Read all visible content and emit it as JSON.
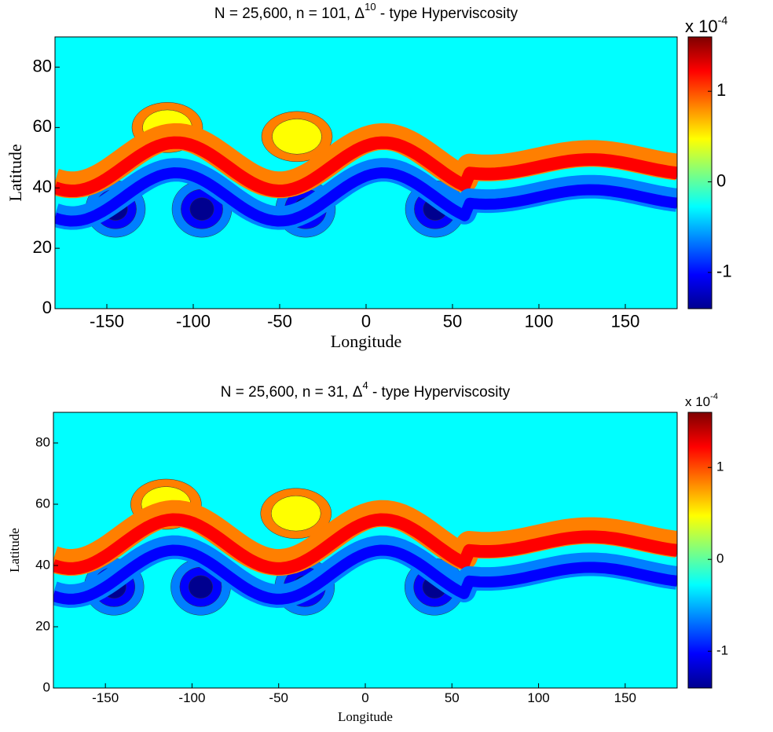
{
  "chart_data": [
    {
      "type": "contour",
      "title": "N = 25,600, n = 101, Δ",
      "title_superscript": "10",
      "title_suffix": " - type Hyperviscosity",
      "xlabel": "Longitude",
      "ylabel": "Latitude",
      "xlim": [
        -180,
        180
      ],
      "xticks": [
        -150,
        -100,
        -50,
        0,
        50,
        100,
        150
      ],
      "ylim": [
        0,
        90
      ],
      "yticks": [
        0,
        20,
        40,
        60,
        80
      ],
      "colorbar_label": "x 10",
      "colorbar_exponent": "-4",
      "clim": [
        -1.4,
        1.6
      ],
      "cticks": [
        -1,
        0,
        1
      ],
      "colormap": [
        "#00008f",
        "#0000ff",
        "#007fff",
        "#00ffff",
        "#7fff7f",
        "#ffff00",
        "#ff7f00",
        "#ff0000",
        "#7f0000"
      ]
    },
    {
      "type": "contour",
      "title": "N = 25,600, n = 31, Δ",
      "title_superscript": "4",
      "title_suffix": " - type Hyperviscosity",
      "xlabel": "Longitude",
      "ylabel": "Latitude",
      "xlim": [
        -180,
        180
      ],
      "xticks": [
        -150,
        -100,
        -50,
        0,
        50,
        100,
        150
      ],
      "ylim": [
        0,
        90
      ],
      "yticks": [
        0,
        20,
        40,
        60,
        80
      ],
      "colorbar_label": "x 10",
      "colorbar_exponent": "-4",
      "clim": [
        -1.4,
        1.6
      ],
      "cticks": [
        -1,
        0,
        1
      ],
      "colormap": [
        "#00008f",
        "#0000ff",
        "#007fff",
        "#00ffff",
        "#7fff7f",
        "#ffff00",
        "#ff7f00",
        "#ff0000",
        "#7f0000"
      ]
    }
  ]
}
